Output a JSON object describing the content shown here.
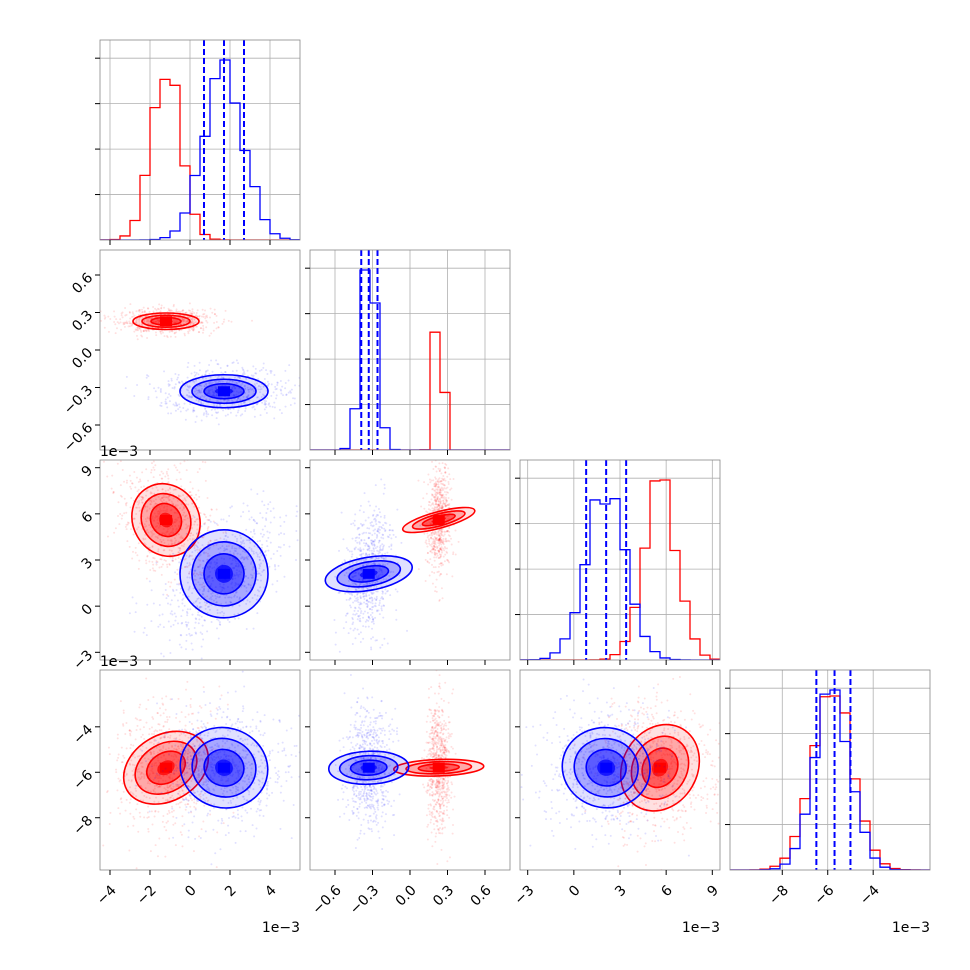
{
  "chart_data": {
    "type": "corner",
    "series": [
      {
        "name": "",
        "color": "#ff0000",
        "mean": [
          -0.0012,
          0.23,
          0.0056,
          -0.0058
        ],
        "sd": [
          0.00075,
          0.03,
          0.0011,
          0.0009
        ]
      },
      {
        "name": "",
        "color": "#0000ff",
        "mean": [
          0.0017,
          -0.33,
          0.0021,
          -0.0058
        ],
        "sd": [
          0.001,
          0.06,
          0.0013,
          0.0008
        ]
      }
    ],
    "params": [
      {
        "range": [
          -0.0045,
          0.0055
        ],
        "ticks": [
          -4,
          -2,
          0,
          2,
          4
        ],
        "scale": 0.001,
        "offset_text": "1e−3"
      },
      {
        "range": [
          -0.8,
          0.8
        ],
        "ticks": [
          -0.6,
          -0.3,
          0.0,
          0.3,
          0.6
        ],
        "scale": 1,
        "offset_text": ""
      },
      {
        "range": [
          -0.0035,
          0.0095
        ],
        "ticks": [
          -3,
          0,
          3,
          6,
          9
        ],
        "scale": 0.001,
        "offset_text": "1e−3"
      },
      {
        "range": [
          -0.0103,
          -0.0015
        ],
        "ticks": [
          -8,
          -6,
          -4
        ],
        "scale": 0.001,
        "offset_text": "1e−3"
      }
    ],
    "quantile_lines": [
      [
        0.0007,
        0.0017,
        0.0027
      ],
      [
        -0.39,
        -0.33,
        -0.26
      ],
      [
        0.0008,
        0.0021,
        0.0034
      ],
      [
        -0.0065,
        -0.0057,
        -0.005
      ]
    ],
    "quantile_color": "#0000ff",
    "tick_labels": {
      "p0": [
        "−4",
        "−2",
        "0",
        "2",
        "4"
      ],
      "p1": [
        "−0.6",
        "−0.3",
        "0.0",
        "0.3",
        "0.6"
      ],
      "p2": [
        "−3",
        "0",
        "3",
        "6",
        "9"
      ],
      "p3": [
        "−8",
        "−6",
        "−4"
      ]
    },
    "grid": true
  }
}
